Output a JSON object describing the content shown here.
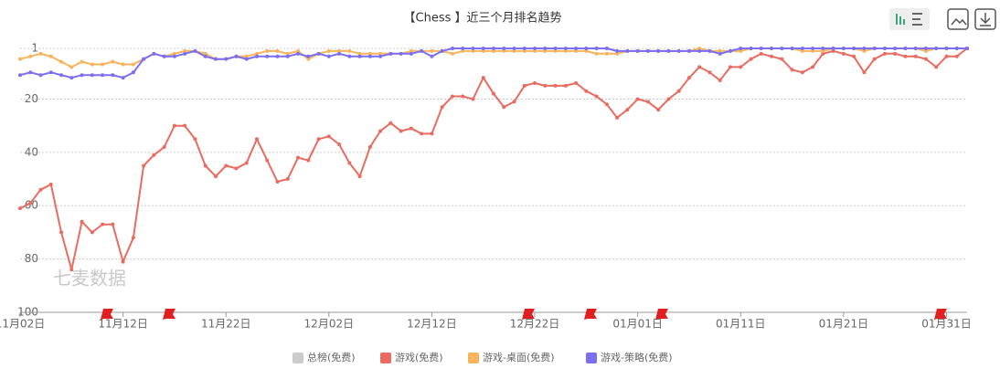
{
  "chart_data": {
    "type": "line",
    "title": "【Chess 】近三个月排名趋势",
    "watermark": "七麦数据",
    "categories": [
      "11月02日",
      null,
      null,
      null,
      null,
      null,
      null,
      null,
      null,
      null,
      "11月12日",
      null,
      null,
      null,
      null,
      null,
      null,
      null,
      null,
      null,
      "11月22日",
      null,
      null,
      null,
      null,
      null,
      null,
      null,
      null,
      null,
      "12月02日",
      null,
      null,
      null,
      null,
      null,
      null,
      null,
      null,
      null,
      "12月12日",
      null,
      null,
      null,
      null,
      null,
      null,
      null,
      null,
      null,
      "12月22日",
      null,
      null,
      null,
      null,
      null,
      null,
      null,
      null,
      null,
      "01月01日",
      null,
      null,
      null,
      null,
      null,
      null,
      null,
      null,
      null,
      "01月11日",
      null,
      null,
      null,
      null,
      null,
      null,
      null,
      null,
      null,
      "01月21日",
      null,
      null,
      null,
      null,
      null,
      null,
      null,
      null,
      null,
      "01月31日",
      null,
      null
    ],
    "series": [
      {
        "name": "总榜(免费)",
        "color": "#cccccc",
        "hidden": true,
        "values": [
          null,
          null,
          null,
          null,
          null,
          null,
          null,
          null,
          null,
          null,
          null,
          null,
          null,
          null,
          null,
          null,
          null,
          null,
          null,
          null,
          null,
          null,
          null,
          null,
          null,
          null,
          null,
          null,
          null,
          null,
          null,
          null,
          null,
          null,
          null,
          null,
          null,
          null,
          null,
          null,
          null,
          null,
          null,
          null,
          null,
          null,
          null,
          null,
          null,
          null,
          null,
          null,
          null,
          null,
          null,
          null,
          null,
          null,
          null,
          null,
          null,
          null,
          null,
          null,
          null,
          null,
          null,
          null,
          null,
          null,
          null,
          null,
          null,
          null,
          null,
          null,
          null,
          null,
          null,
          null,
          null,
          null,
          null,
          null,
          null,
          null,
          null,
          null,
          null,
          null,
          null,
          null,
          null
        ]
      },
      {
        "name": "游戏(免费)",
        "color": "#ea6b60",
        "values": [
          61,
          59,
          54,
          52,
          70,
          84,
          66,
          70,
          67,
          67,
          81,
          72,
          45,
          41,
          38,
          30,
          30,
          35,
          45,
          49,
          45,
          46,
          44,
          35,
          43,
          51,
          50,
          42,
          43,
          35,
          34,
          37,
          44,
          49,
          38,
          32,
          29,
          32,
          31,
          33,
          33,
          23,
          19,
          19,
          20,
          12,
          18,
          23,
          21,
          15,
          14,
          15,
          15,
          15,
          14,
          17,
          19,
          22,
          27,
          24,
          20,
          21,
          24,
          20,
          17,
          12,
          8,
          10,
          13,
          8,
          8,
          5,
          3,
          4,
          5,
          9,
          10,
          8,
          3,
          2,
          3,
          4,
          10,
          5,
          3,
          3,
          4,
          4,
          5,
          8,
          4,
          4,
          1
        ]
      },
      {
        "name": "游戏-桌面(免费)",
        "color": "#f8b45c",
        "values": [
          5,
          4,
          3,
          4,
          6,
          8,
          6,
          7,
          7,
          6,
          7,
          7,
          5,
          3,
          4,
          3,
          2,
          2,
          3,
          5,
          5,
          4,
          4,
          3,
          2,
          2,
          3,
          2,
          5,
          3,
          2,
          2,
          2,
          3,
          3,
          3,
          3,
          3,
          2,
          2,
          2,
          2,
          3,
          2,
          2,
          2,
          2,
          2,
          2,
          2,
          2,
          2,
          2,
          2,
          2,
          2,
          3,
          3,
          3,
          2,
          2,
          2,
          2,
          2,
          2,
          2,
          1,
          2,
          2,
          2,
          2,
          1,
          1,
          1,
          1,
          1,
          2,
          2,
          2,
          1,
          1,
          1,
          2,
          1,
          1,
          1,
          1,
          1,
          2,
          1,
          1,
          1,
          1
        ]
      },
      {
        "name": "游戏-策略(免费)",
        "color": "#7b6ef0",
        "values": [
          11,
          10,
          11,
          10,
          11,
          12,
          11,
          11,
          11,
          11,
          12,
          10,
          5,
          3,
          4,
          4,
          3,
          2,
          4,
          5,
          5,
          4,
          5,
          4,
          4,
          4,
          4,
          3,
          4,
          3,
          4,
          3,
          4,
          4,
          4,
          4,
          3,
          3,
          3,
          2,
          4,
          2,
          1,
          1,
          1,
          1,
          1,
          1,
          1,
          1,
          1,
          1,
          1,
          1,
          1,
          1,
          1,
          1,
          2,
          2,
          2,
          2,
          2,
          2,
          2,
          2,
          2,
          2,
          3,
          2,
          1,
          1,
          1,
          1,
          1,
          1,
          1,
          1,
          1,
          1,
          1,
          1,
          1,
          1,
          1,
          1,
          1,
          1,
          1,
          1,
          1,
          1,
          1
        ]
      }
    ],
    "ylim": [
      1,
      100
    ],
    "inverted": true,
    "yticks": [
      1,
      20,
      40,
      60,
      80,
      100
    ],
    "grid": true,
    "legend": "bottom"
  }
}
